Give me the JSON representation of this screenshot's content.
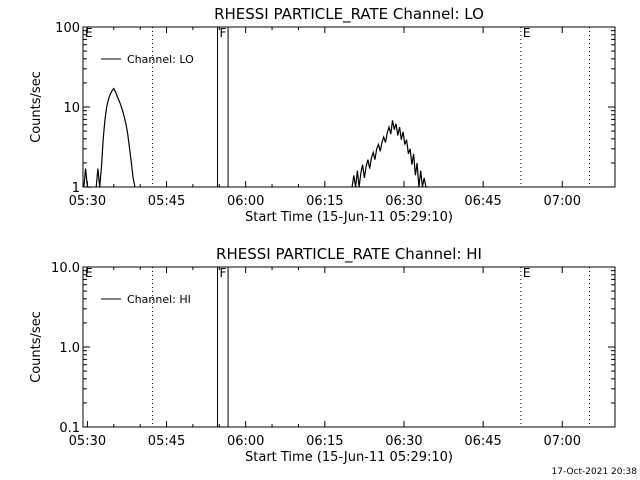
{
  "footer": {
    "timestamp": "17-Oct-2021 20:38"
  },
  "chart_data": [
    {
      "type": "line",
      "title": "RHESSI PARTICLE_RATE Channel: LO",
      "xlabel": "Start Time (15-Jun-11 05:29:10)",
      "ylabel": "Counts/sec",
      "y_scale": "log",
      "xlim": [
        "05:29:10",
        "07:10:00"
      ],
      "ylim": [
        1,
        100
      ],
      "xticks": [
        "05:30",
        "05:45",
        "06:00",
        "06:15",
        "06:30",
        "06:45",
        "07:00"
      ],
      "yticks": [
        "1",
        "10",
        "100"
      ],
      "legend": {
        "location": "top-left",
        "entries": [
          "Channel: LO"
        ]
      },
      "markers": [
        {
          "label": "E",
          "time": "05:29:10",
          "style": "dotted"
        },
        {
          "label": "",
          "time": "05:42:20",
          "style": "dotted"
        },
        {
          "label": "F",
          "time": "05:54:40",
          "style": "solid"
        },
        {
          "label": "",
          "time": "05:56:40",
          "style": "solid"
        },
        {
          "label": "E",
          "time": "06:52:10",
          "style": "dotted"
        },
        {
          "label": "",
          "time": "07:05:10",
          "style": "dotted"
        }
      ],
      "series": [
        {
          "name": "Channel: LO",
          "segments": [
            {
              "x": [
                "05:29:20",
                "05:29:40",
                "05:30:00",
                "05:30:20",
                "05:30:40"
              ],
              "y": [
                1.0,
                1.7,
                1.0,
                1.0,
                1.0
              ]
            },
            {
              "x": [
                "05:31:40",
                "05:32:00",
                "05:32:20",
                "05:32:40",
                "05:33:00",
                "05:33:20",
                "05:33:40",
                "05:34:00",
                "05:34:20",
                "05:34:40",
                "05:35:00",
                "05:35:20",
                "05:35:40",
                "05:36:00",
                "05:36:20",
                "05:36:40",
                "05:37:00",
                "05:37:20",
                "05:37:40",
                "05:38:00",
                "05:38:20",
                "05:38:40",
                "05:39:00"
              ],
              "y": [
                1.0,
                1.7,
                1.0,
                1.8,
                4.0,
                7.0,
                10.0,
                12.5,
                14.5,
                16.0,
                17.0,
                15.5,
                13.5,
                12.0,
                10.5,
                9.0,
                7.5,
                6.0,
                4.5,
                3.0,
                2.0,
                1.3,
                1.0
              ]
            },
            {
              "x": [
                "06:20:10",
                "06:20:30",
                "06:20:50",
                "06:21:10",
                "06:21:30",
                "06:21:50",
                "06:22:10",
                "06:22:30",
                "06:22:50",
                "06:23:10",
                "06:23:30",
                "06:23:50",
                "06:24:10",
                "06:24:30",
                "06:24:50",
                "06:25:10",
                "06:25:30",
                "06:25:50",
                "06:26:10",
                "06:26:30",
                "06:26:50",
                "06:27:10",
                "06:27:30",
                "06:27:50",
                "06:28:10",
                "06:28:30",
                "06:28:50",
                "06:29:10",
                "06:29:30",
                "06:29:50",
                "06:30:10",
                "06:30:30",
                "06:30:50",
                "06:31:10",
                "06:31:30",
                "06:31:50",
                "06:32:10",
                "06:32:30",
                "06:32:50",
                "06:33:10",
                "06:33:30",
                "06:33:50",
                "06:34:10",
                "06:34:30"
              ],
              "y": [
                1.0,
                1.4,
                1.0,
                1.6,
                1.0,
                1.5,
                1.9,
                1.3,
                1.8,
                2.2,
                1.7,
                2.3,
                2.7,
                2.2,
                3.0,
                3.4,
                2.8,
                3.6,
                4.2,
                3.6,
                4.8,
                5.6,
                4.6,
                6.8,
                5.2,
                6.2,
                4.4,
                5.6,
                3.9,
                4.9,
                3.4,
                3.9,
                2.6,
                3.0,
                1.9,
                2.6,
                1.4,
                2.0,
                1.0,
                1.6,
                1.0,
                1.3,
                1.0,
                1.0
              ]
            }
          ]
        }
      ]
    },
    {
      "type": "line",
      "title": "RHESSI PARTICLE_RATE Channel: HI",
      "xlabel": "Start Time (15-Jun-11 05:29:10)",
      "ylabel": "Counts/sec",
      "y_scale": "log",
      "xlim": [
        "05:29:10",
        "07:10:00"
      ],
      "ylim": [
        0.1,
        10.0
      ],
      "xticks": [
        "05:30",
        "05:45",
        "06:00",
        "06:15",
        "06:30",
        "06:45",
        "07:00"
      ],
      "yticks": [
        "0.1",
        "1.0",
        "10.0"
      ],
      "legend": {
        "location": "top-left",
        "entries": [
          "Channel: HI"
        ]
      },
      "markers": [
        {
          "label": "E",
          "time": "05:29:10",
          "style": "dotted"
        },
        {
          "label": "",
          "time": "05:42:20",
          "style": "dotted"
        },
        {
          "label": "F",
          "time": "05:54:40",
          "style": "solid"
        },
        {
          "label": "",
          "time": "05:56:40",
          "style": "solid"
        },
        {
          "label": "E",
          "time": "06:52:10",
          "style": "dotted"
        },
        {
          "label": "",
          "time": "07:05:10",
          "style": "dotted"
        }
      ],
      "series": [
        {
          "name": "Channel: HI",
          "segments": []
        }
      ]
    }
  ]
}
